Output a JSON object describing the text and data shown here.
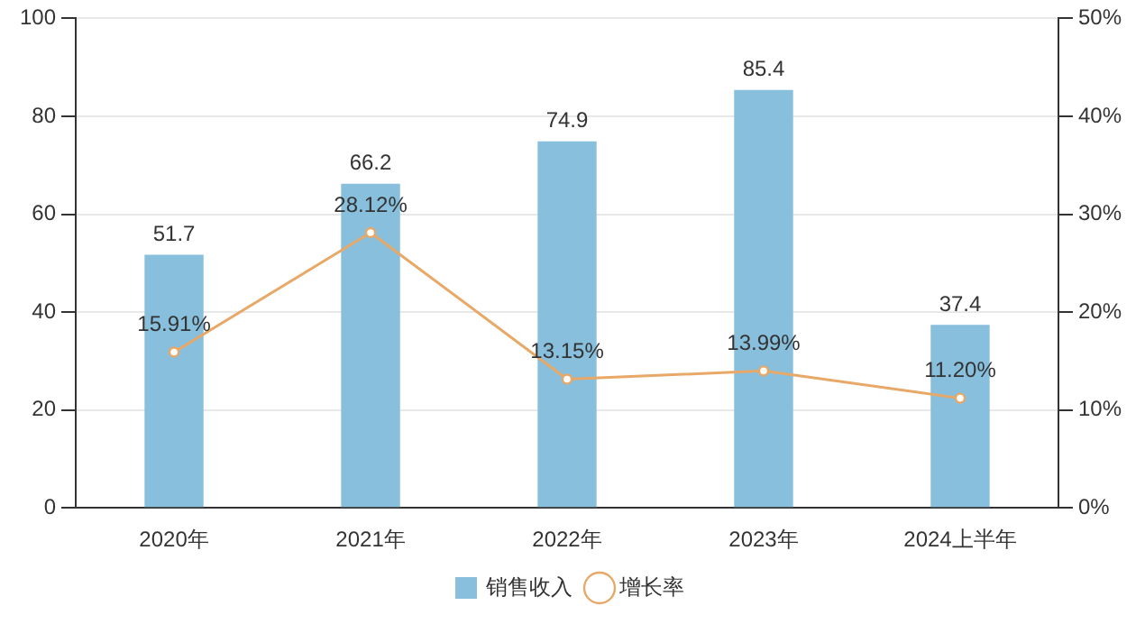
{
  "chart_data": {
    "type": "bar",
    "categories": [
      "2020年",
      "2021年",
      "2022年",
      "2023年",
      "2024上半年"
    ],
    "series": [
      {
        "name": "销售收入",
        "color": "#87bfdc",
        "values": [
          51.7,
          66.2,
          74.9,
          85.4,
          37.4
        ],
        "value_labels": [
          "51.7",
          "66.2",
          "74.9",
          "85.4",
          "37.4"
        ]
      },
      {
        "name": "增长率",
        "type": "line",
        "axis": "y2",
        "color": "#e8a867",
        "values": [
          15.91,
          28.12,
          13.15,
          13.99,
          11.2
        ],
        "value_labels": [
          "15.91%",
          "28.12%",
          "13.15%",
          "13.99%",
          "11.20%"
        ]
      }
    ],
    "ylim": [
      0,
      100
    ],
    "yticks": [
      0,
      20,
      40,
      60,
      80,
      100
    ],
    "y2lim": [
      0,
      50
    ],
    "y2ticks": [
      {
        "value": 0,
        "label": "0%"
      },
      {
        "value": 10,
        "label": "10%"
      },
      {
        "value": 20,
        "label": "20%"
      },
      {
        "value": 30,
        "label": "30%"
      },
      {
        "value": 40,
        "label": "40%"
      },
      {
        "value": 50,
        "label": "50%"
      }
    ],
    "grid": "y",
    "legend": "bottom",
    "marker": "circle",
    "line_style": "solid"
  }
}
